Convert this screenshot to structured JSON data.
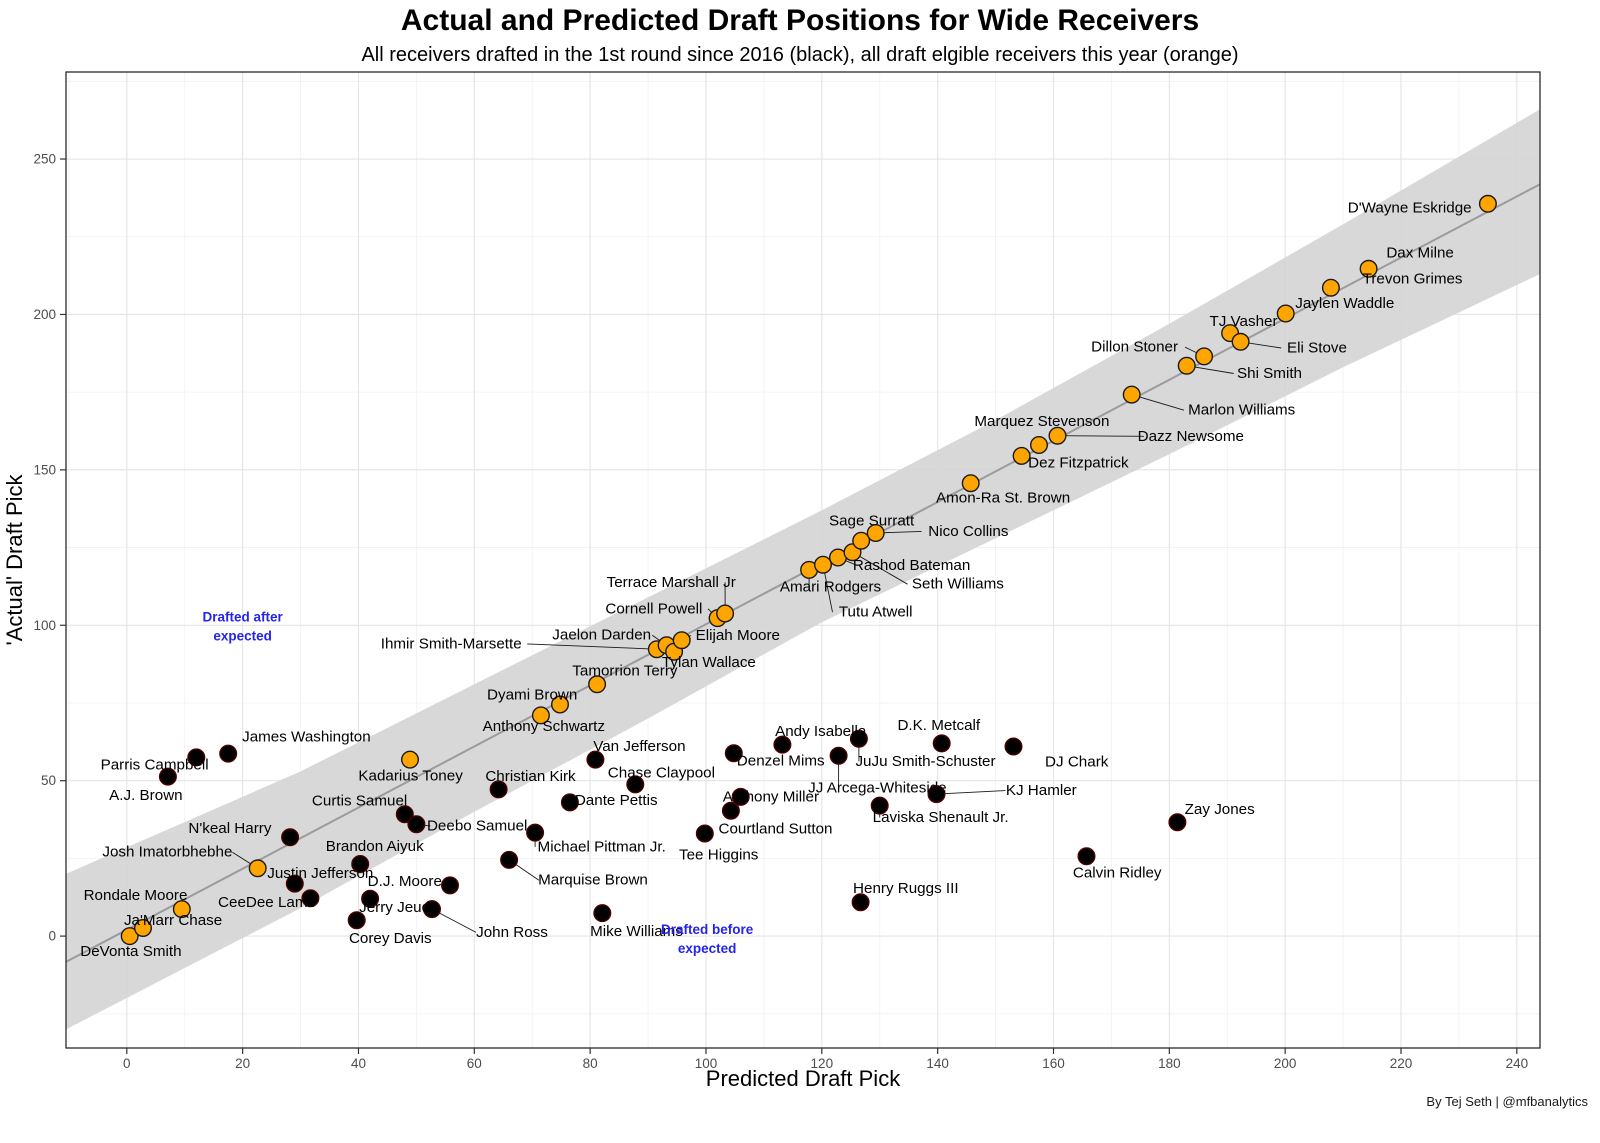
{
  "header": {
    "title": "Actual and Predicted Draft Positions for Wide Receivers",
    "subtitle": "All receivers drafted in the 1st round since 2016 (black), all draft elgible receivers this year (orange)"
  },
  "footer": {
    "caption": "By Tej Seth | @mfbanalytics"
  },
  "chart_data": {
    "type": "scatter",
    "title": "Actual and Predicted Draft Positions for Wide Receivers",
    "subtitle": "All receivers drafted in the 1st round since 2016 (black), all draft elgible receivers this year (orange)",
    "xlabel": "Predicted Draft Pick",
    "ylabel": "'Actual' Draft Pick",
    "xlim": [
      -10.5,
      244
    ],
    "ylim": [
      -36,
      278
    ],
    "x_ticks": [
      0,
      20,
      40,
      60,
      80,
      100,
      120,
      140,
      160,
      180,
      200,
      220,
      240
    ],
    "y_ticks": [
      0,
      50,
      100,
      150,
      200,
      250
    ],
    "grid": true,
    "legend_position": "none",
    "colors": {
      "orange": "#FFA500",
      "black": "#000000",
      "band": "#D4D4D4",
      "trend": "#9B9B9B",
      "annotation": "#2424EE",
      "grid_major": "#E4E4E4",
      "grid_minor": "#F1F1F1"
    },
    "annotations": [
      {
        "x": 20.0,
        "y": 102.7,
        "lines": [
          "Drafted after",
          "expected"
        ]
      },
      {
        "x": 100.2,
        "y": 2.2,
        "lines": [
          "Drafted before",
          "expected"
        ]
      }
    ],
    "band": {
      "upper": [
        [
          -10.5,
          20
        ],
        [
          30,
          53
        ],
        [
          60,
          81
        ],
        [
          90,
          109
        ],
        [
          120,
          137
        ],
        [
          150,
          166
        ],
        [
          180,
          197
        ],
        [
          210,
          229
        ],
        [
          244,
          266
        ]
      ],
      "lower": [
        [
          -10.5,
          -30
        ],
        [
          30,
          9
        ],
        [
          60,
          40
        ],
        [
          90,
          70
        ],
        [
          120,
          101
        ],
        [
          150,
          128
        ],
        [
          180,
          155
        ],
        [
          210,
          183
        ],
        [
          244,
          213
        ]
      ]
    },
    "trend": {
      "x1": -10.5,
      "y1": -8.3,
      "x2": 244,
      "y2": 241.9
    },
    "series": [
      {
        "name": "Receivers drafted in the 1st round since 2016",
        "color_key": "black",
        "points": [
          {
            "label": "Parris Campbell",
            "x": 12,
            "y": 57.5,
            "lx": 4.8,
            "ly": 55,
            "line": false
          },
          {
            "label": "A.J. Brown",
            "x": 7.1,
            "y": 51.3,
            "lx": 3.3,
            "ly": 45.3,
            "line": false
          },
          {
            "label": "James Washington",
            "x": 17.5,
            "y": 58.7,
            "lx": 31,
            "ly": 64,
            "line": false
          },
          {
            "label": "N'keal Harry",
            "x": 28.2,
            "y": 31.8,
            "lx": 17.8,
            "ly": 34.6,
            "line": false
          },
          {
            "label": "Justin Jefferson",
            "x": 29,
            "y": 16.9,
            "lx": 33.4,
            "ly": 20.1,
            "line": false
          },
          {
            "label": "CeeDee Lamb",
            "x": 31.7,
            "y": 12.2,
            "lx": 24.2,
            "ly": 10.8,
            "line": false
          },
          {
            "label": "Curtis Samuel",
            "x": 48,
            "y": 39.2,
            "lx": 40.2,
            "ly": 43.5,
            "line": false
          },
          {
            "label": "Deebo Samuel",
            "x": 50,
            "y": 36,
            "lx": 60.5,
            "ly": 35.4,
            "line": true
          },
          {
            "label": "Brandon Aiyuk",
            "x": 40.3,
            "y": 23.2,
            "lx": 42.8,
            "ly": 28.9,
            "line": false
          },
          {
            "label": "Jerry Jeudy",
            "x": 42,
            "y": 12,
            "lx": 46.9,
            "ly": 9.2,
            "line": false
          },
          {
            "label": "Corey Davis",
            "x": 39.7,
            "y": 5.1,
            "lx": 45.5,
            "ly": -0.7,
            "line": false
          },
          {
            "label": "D.J. Moore",
            "x": 55.8,
            "y": 16.3,
            "lx": 48,
            "ly": 17.6,
            "line": false
          },
          {
            "label": "John Ross",
            "x": 52.7,
            "y": 8.7,
            "lx": 66.5,
            "ly": 1.2,
            "line": true
          },
          {
            "label": "Mike Williams",
            "x": 82.1,
            "y": 7.4,
            "lx": 88,
            "ly": 1.5,
            "line": false
          },
          {
            "label": "Marquise Brown",
            "x": 66,
            "y": 24.5,
            "lx": 80.5,
            "ly": 18,
            "line": true
          },
          {
            "label": "Michael Pittman Jr.",
            "x": 70.5,
            "y": 33.3,
            "lx": 82,
            "ly": 28.7,
            "line": true
          },
          {
            "label": "Dante Pettis",
            "x": 76.5,
            "y": 43,
            "lx": 84.5,
            "ly": 43.6,
            "line": false
          },
          {
            "label": "Christian Kirk",
            "x": 64.2,
            "y": 47.2,
            "lx": 69.7,
            "ly": 51.3,
            "line": false
          },
          {
            "label": "Van Jefferson",
            "x": 80.9,
            "y": 56.8,
            "lx": 88.5,
            "ly": 61,
            "line": false
          },
          {
            "label": "Chase Claypool",
            "x": 87.8,
            "y": 48.8,
            "lx": 92.3,
            "ly": 52.5,
            "line": false
          },
          {
            "label": "Denzel Mims",
            "x": 104.8,
            "y": 58.8,
            "lx": 112.9,
            "ly": 56.4,
            "line": false
          },
          {
            "label": "Andy Isabella",
            "x": 113.2,
            "y": 61.6,
            "lx": 119.8,
            "ly": 65.8,
            "line": false
          },
          {
            "label": "JuJu Smith-Schuster",
            "x": 126.4,
            "y": 63.5,
            "lx": 137.9,
            "ly": 56.2,
            "line": true
          },
          {
            "label": "JJ Arcega-Whiteside",
            "x": 122.9,
            "y": 58,
            "lx": 129.6,
            "ly": 47.7,
            "line": true
          },
          {
            "label": "D.K. Metcalf",
            "x": 140.7,
            "y": 62,
            "lx": 140.2,
            "ly": 67.7,
            "line": false
          },
          {
            "label": "KJ Hamler",
            "x": 139.8,
            "y": 45.7,
            "lx": 157.9,
            "ly": 46.8,
            "line": true
          },
          {
            "label": "Laviska Shenault Jr.",
            "x": 130,
            "y": 42,
            "lx": 140.5,
            "ly": 38.2,
            "line": true
          },
          {
            "label": "Tee Higgins",
            "x": 99.8,
            "y": 33,
            "lx": 102.2,
            "ly": 26.1,
            "line": false
          },
          {
            "label": "Courtland Sutton",
            "x": 104.3,
            "y": 40.3,
            "lx": 112,
            "ly": 34.4,
            "line": false
          },
          {
            "label": "Anthony Miller",
            "x": 106,
            "y": 44.8,
            "lx": 111.2,
            "ly": 44.7,
            "line": false
          },
          {
            "label": "DJ Chark",
            "x": 153.1,
            "y": 61,
            "lx": 164,
            "ly": 56,
            "line": false
          },
          {
            "label": "Zay Jones",
            "x": 181.4,
            "y": 36.6,
            "lx": 188.7,
            "ly": 40.7,
            "line": false
          },
          {
            "label": "Calvin Ridley",
            "x": 165.7,
            "y": 25.7,
            "lx": 171,
            "ly": 20.3,
            "line": false
          },
          {
            "label": "Henry Ruggs III",
            "x": 126.7,
            "y": 10.9,
            "lx": 134.5,
            "ly": 15.3,
            "line": false
          }
        ]
      },
      {
        "name": "Draft eligible receivers this year",
        "color_key": "orange",
        "points": [
          {
            "label": "DeVonta Smith",
            "x": 0.5,
            "y": 0,
            "lx": 0.7,
            "ly": -5,
            "line": false
          },
          {
            "label": "Ja'Marr Chase",
            "x": 2.8,
            "y": 2.6,
            "lx": 8,
            "ly": 5,
            "line": false
          },
          {
            "label": "Rondale Moore",
            "x": 9.5,
            "y": 8.7,
            "lx": 1.5,
            "ly": 13,
            "line": false
          },
          {
            "label": "Josh Imatorbhebhe",
            "x": 22.6,
            "y": 21.8,
            "lx": 7,
            "ly": 27,
            "line": true
          },
          {
            "label": "Kadarius Toney",
            "x": 48.9,
            "y": 56.8,
            "lx": 49,
            "ly": 51.5,
            "line": false
          },
          {
            "label": "Anthony Schwartz",
            "x": 71.5,
            "y": 71,
            "lx": 72,
            "ly": 67.5,
            "line": false
          },
          {
            "label": "Dyami Brown",
            "x": 74.8,
            "y": 74.5,
            "lx": 70,
            "ly": 77.5,
            "line": false
          },
          {
            "label": "Tamorrion Terry",
            "x": 81.2,
            "y": 81,
            "lx": 86,
            "ly": 85.3,
            "line": false
          },
          {
            "label": "Ihmir Smith-Marsette",
            "x": 91.5,
            "y": 92.3,
            "lx": 56,
            "ly": 94,
            "line": true
          },
          {
            "label": "Jaelon Darden",
            "x": 93.2,
            "y": 93.6,
            "lx": 82,
            "ly": 96.8,
            "line": true
          },
          {
            "label": "Tylan Wallace",
            "x": 94.5,
            "y": 91.5,
            "lx": 100.5,
            "ly": 88,
            "line": false
          },
          {
            "label": "Elijah Moore",
            "x": 95.8,
            "y": 95.2,
            "lx": 105.5,
            "ly": 96.7,
            "line": true
          },
          {
            "label": "Cornell Powell",
            "x": 102,
            "y": 102.3,
            "lx": 91,
            "ly": 105.3,
            "line": true
          },
          {
            "label": "Terrace Marshall Jr",
            "x": 103.3,
            "y": 103.8,
            "lx": 94,
            "ly": 113.8,
            "line": true
          },
          {
            "label": "Amari Rodgers",
            "x": 117.8,
            "y": 117.8,
            "lx": 121.5,
            "ly": 112.3,
            "line": true
          },
          {
            "label": "Tutu Atwell",
            "x": 120.2,
            "y": 119.5,
            "lx": 129.3,
            "ly": 104.2,
            "line": true
          },
          {
            "label": "Rashod Bateman",
            "x": 122.8,
            "y": 121.8,
            "lx": 135.5,
            "ly": 119.2,
            "line": true
          },
          {
            "label": "Seth Williams",
            "x": 125.3,
            "y": 123.5,
            "lx": 143.5,
            "ly": 113.2,
            "line": true
          },
          {
            "label": "Sage Surratt",
            "x": 126.8,
            "y": 127.2,
            "lx": 128.6,
            "ly": 133.6,
            "line": false
          },
          {
            "label": "Nico Collins",
            "x": 129.3,
            "y": 129.7,
            "lx": 145.3,
            "ly": 130.2,
            "line": true
          },
          {
            "label": "Amon-Ra St. Brown",
            "x": 145.7,
            "y": 145.7,
            "lx": 151.3,
            "ly": 140.9,
            "line": false
          },
          {
            "label": "Dez Fitzpatrick",
            "x": 154.5,
            "y": 154.5,
            "lx": 164.3,
            "ly": 152.2,
            "line": true
          },
          {
            "label": "Marquez Stevenson",
            "x": 157.5,
            "y": 158,
            "lx": 158,
            "ly": 165.5,
            "line": false
          },
          {
            "label": "Dazz Newsome",
            "x": 160.7,
            "y": 161,
            "lx": 183.7,
            "ly": 160.8,
            "line": true
          },
          {
            "label": "Marlon Williams",
            "x": 173.5,
            "y": 174.2,
            "lx": 192.5,
            "ly": 169.2,
            "line": true
          },
          {
            "label": "Shi Smith",
            "x": 183,
            "y": 183.5,
            "lx": 197.3,
            "ly": 181,
            "line": true
          },
          {
            "label": "Dillon Stoner",
            "x": 186,
            "y": 186.5,
            "lx": 174,
            "ly": 189.5,
            "line": true
          },
          {
            "label": "TJ Vasher",
            "x": 190.5,
            "y": 194,
            "lx": 192.8,
            "ly": 197.8,
            "line": false
          },
          {
            "label": "Eli Stove",
            "x": 192.3,
            "y": 191.2,
            "lx": 205.5,
            "ly": 189.2,
            "line": true
          },
          {
            "label": "Jaylen Waddle",
            "x": 200.1,
            "y": 200.3,
            "lx": 210.3,
            "ly": 203.6,
            "line": false
          },
          {
            "label": "Trevon Grimes",
            "x": 207.9,
            "y": 208.6,
            "lx": 222,
            "ly": 211.4,
            "line": false
          },
          {
            "label": "Dax Milne",
            "x": 214.4,
            "y": 214.7,
            "lx": 223.3,
            "ly": 219.8,
            "line": false
          },
          {
            "label": "D'Wayne Eskridge",
            "x": 235,
            "y": 235.6,
            "lx": 221.5,
            "ly": 234.2,
            "line": false
          }
        ]
      }
    ]
  }
}
